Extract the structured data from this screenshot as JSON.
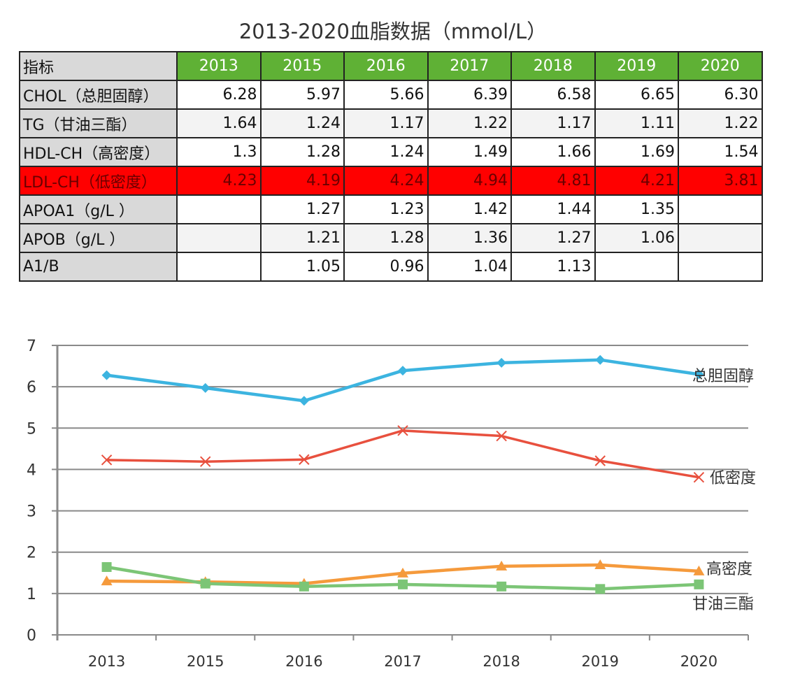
{
  "title": "2013-2020血脂数据（mmol/L）",
  "table": {
    "header": [
      "指标",
      "2013",
      "2015",
      "2016",
      "2017",
      "2018",
      "2019",
      "2020"
    ],
    "rows": [
      {
        "label": "CHOL（总胆固醇）",
        "values": [
          "6.28",
          "5.97",
          "5.66",
          "6.39",
          "6.58",
          "6.65",
          "6.30"
        ]
      },
      {
        "label": "TG（甘油三酯）",
        "values": [
          "1.64",
          "1.24",
          "1.17",
          "1.22",
          "1.17",
          "1.11",
          "1.22"
        ]
      },
      {
        "label": "HDL-CH（高密度）",
        "values": [
          "1.3",
          "1.28",
          "1.24",
          "1.49",
          "1.66",
          "1.69",
          "1.54"
        ]
      },
      {
        "label": "LDL-CH（低密度）",
        "values": [
          "4.23",
          "4.19",
          "4.24",
          "4.94",
          "4.81",
          "4.21",
          "3.81"
        ],
        "highlight": true
      },
      {
        "label": "APOA1（g/L ）",
        "values": [
          "",
          "1.27",
          "1.23",
          "1.42",
          "1.44",
          "1.35",
          ""
        ]
      },
      {
        "label": "APOB（g/L ）",
        "values": [
          "",
          "1.21",
          "1.28",
          "1.36",
          "1.27",
          "1.06",
          ""
        ]
      },
      {
        "label": "A1/B",
        "values": [
          "",
          "1.05",
          "0.96",
          "1.04",
          "1.13",
          "",
          ""
        ]
      }
    ],
    "colors": {
      "header": "#5fb135",
      "highlight": "#ff0000"
    }
  },
  "chart_data": {
    "type": "line",
    "categories": [
      "2013",
      "2015",
      "2016",
      "2017",
      "2018",
      "2019",
      "2020"
    ],
    "ylim": [
      0,
      7
    ],
    "yticks": [
      "0",
      "1",
      "2",
      "3",
      "4",
      "5",
      "6",
      "7"
    ],
    "grid": true,
    "series": [
      {
        "name": "总胆固醇",
        "values": [
          6.28,
          5.97,
          5.66,
          6.39,
          6.58,
          6.65,
          6.3
        ],
        "color": "#3cb4e0",
        "marker": "diamond"
      },
      {
        "name": "低密度",
        "values": [
          4.23,
          4.19,
          4.24,
          4.94,
          4.81,
          4.21,
          3.81
        ],
        "color": "#e8503e",
        "marker": "x"
      },
      {
        "name": "高密度",
        "values": [
          1.3,
          1.28,
          1.24,
          1.49,
          1.66,
          1.69,
          1.54
        ],
        "color": "#f59a3c",
        "marker": "triangle"
      },
      {
        "name": "甘油三酯",
        "values": [
          1.64,
          1.24,
          1.17,
          1.22,
          1.17,
          1.11,
          1.22
        ],
        "color": "#7cc576",
        "marker": "square"
      }
    ]
  }
}
